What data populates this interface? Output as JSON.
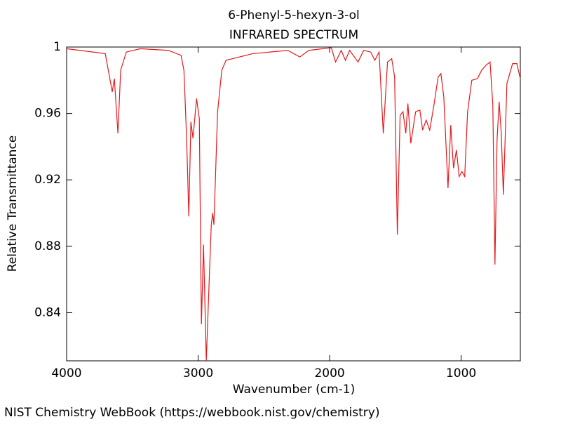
{
  "chart_data": {
    "type": "line",
    "title": "6-Phenyl-5-hexyn-3-ol",
    "subtitle": "INFRARED SPECTRUM",
    "x_label": "Wavenumber (cm-1)",
    "y_label": "Relative Transmittance",
    "source": "NIST Chemistry WebBook (https://webbook.nist.gov/chemistry)",
    "xlim": [
      4000,
      550
    ],
    "ylim": [
      0.811,
      1.0
    ],
    "xticks": [
      4000,
      3000,
      2000,
      1000
    ],
    "yticks": [
      1,
      0.96,
      0.92,
      0.88,
      0.84
    ],
    "grid": false,
    "series": [
      {
        "color": "#e41a1c",
        "x": [
          4000,
          3900,
          3800,
          3706,
          3653,
          3637,
          3610,
          3589,
          3546,
          3439,
          3226,
          3130,
          3108,
          3087,
          3071,
          3055,
          3039,
          3012,
          2991,
          2975,
          2959,
          2938,
          2916,
          2900,
          2889,
          2880,
          2852,
          2820,
          2788,
          2585,
          2318,
          2227,
          2158,
          1987,
          1955,
          1912,
          1880,
          1848,
          1784,
          1741,
          1688,
          1656,
          1624,
          1592,
          1560,
          1528,
          1506,
          1485,
          1464,
          1442,
          1421,
          1405,
          1383,
          1346,
          1314,
          1293,
          1266,
          1239,
          1207,
          1175,
          1154,
          1132,
          1100,
          1079,
          1058,
          1036,
          1015,
          994,
          973,
          951,
          919,
          876,
          844,
          812,
          780,
          759,
          743,
          727,
          711,
          695,
          679,
          652,
          609,
          577,
          550
        ],
        "values": [
          0.999,
          0.998,
          0.997,
          0.996,
          0.973,
          0.981,
          0.948,
          0.986,
          0.997,
          0.999,
          0.998,
          0.995,
          0.986,
          0.944,
          0.898,
          0.955,
          0.945,
          0.969,
          0.957,
          0.833,
          0.881,
          0.811,
          0.859,
          0.893,
          0.9,
          0.893,
          0.961,
          0.986,
          0.992,
          0.996,
          0.998,
          0.994,
          0.998,
          0.9996,
          0.991,
          0.998,
          0.992,
          0.998,
          0.991,
          0.998,
          0.997,
          0.992,
          0.997,
          0.948,
          0.991,
          0.993,
          0.982,
          0.887,
          0.959,
          0.961,
          0.948,
          0.966,
          0.942,
          0.961,
          0.962,
          0.95,
          0.956,
          0.95,
          0.965,
          0.982,
          0.984,
          0.97,
          0.915,
          0.953,
          0.927,
          0.938,
          0.922,
          0.925,
          0.922,
          0.961,
          0.98,
          0.981,
          0.986,
          0.989,
          0.991,
          0.965,
          0.869,
          0.944,
          0.967,
          0.948,
          0.911,
          0.978,
          0.99,
          0.99,
          0.981
        ]
      }
    ]
  }
}
